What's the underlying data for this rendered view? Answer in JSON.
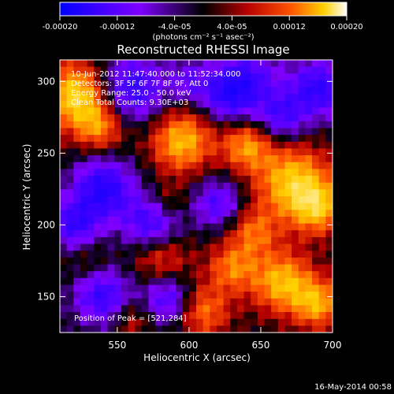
{
  "colorbar": {
    "tick_labels": [
      "-0.00020",
      "-0.00012",
      "-4.0e-05",
      "4.0e-05",
      "0.00012",
      "0.00020"
    ],
    "tick_values": [
      -0.0002,
      -0.00012,
      -4e-05,
      4e-05,
      0.00012,
      0.0002
    ],
    "range": [
      -0.0002,
      0.0002
    ],
    "units_label": "(photons cm⁻² s⁻¹ asec⁻²)",
    "colormap": [
      "#0000ff",
      "#7f00ff",
      "#000000",
      "#b40000",
      "#ff5000",
      "#ffd000",
      "#ffffff"
    ]
  },
  "chart_data": {
    "type": "heatmap",
    "title": "Reconstructed RHESSI Image",
    "xlabel": "Heliocentric X (arcsec)",
    "ylabel": "Heliocentric Y (arcsec)",
    "xlim": [
      510,
      700
    ],
    "ylim": [
      125,
      315
    ],
    "xticks": [
      550,
      600,
      650,
      700
    ],
    "yticks": [
      150,
      200,
      250,
      300
    ],
    "xtick_labels": [
      "550",
      "600",
      "650",
      "700"
    ],
    "ytick_labels": [
      "150",
      "200",
      "250",
      "300"
    ],
    "grid": false,
    "annotations": {
      "line1": "10-Jun-2012 11:47:40.000 to 11:52:34.000",
      "line2": "Detectors: 3F 5F 6F 7F 8F 9F, Att 0",
      "line3": "Energy Range: 25.0 - 50.0 keV",
      "line4": "Clean   Total Counts: 9.30E+03",
      "peak": "Position of Peak = [521,284]"
    },
    "peak_position": [
      521,
      284
    ],
    "grid_cells": [
      40,
      40
    ]
  },
  "footer": {
    "date": "16-May-2014 00:58"
  }
}
